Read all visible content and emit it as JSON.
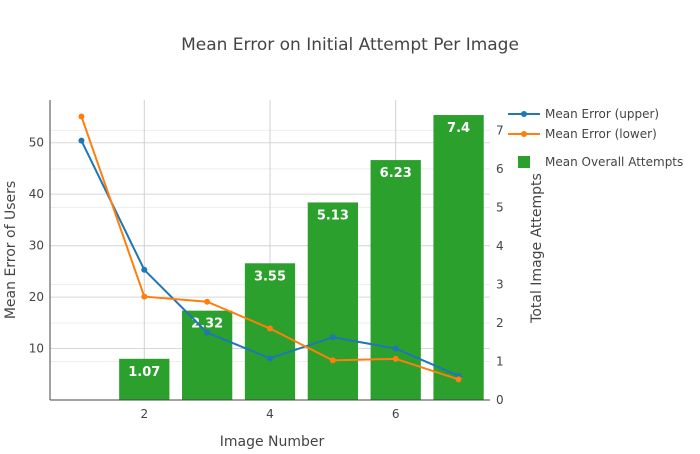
{
  "chart_data": {
    "type": "bar+line",
    "title": "Mean Error on Initial Attempt Per Image",
    "xlabel": "Image Number",
    "ylabel": "Mean Error of Users",
    "y2label": "Total Image Attempts",
    "xlim": [
      0.5,
      7.5
    ],
    "ylim": [
      0,
      58.3
    ],
    "y2lim": [
      0,
      7.79
    ],
    "x_ticks": [
      2,
      4,
      6
    ],
    "y_ticks": [
      10,
      20,
      30,
      40,
      50
    ],
    "y2_ticks": [
      0,
      1,
      2,
      3,
      4,
      5,
      6,
      7
    ],
    "grid": true,
    "legend_position": "right",
    "x": [
      1,
      2,
      3,
      4,
      5,
      6,
      7
    ],
    "series": [
      {
        "name": "Mean Error (upper)",
        "type": "line",
        "axis": "y",
        "color": "#1f77b4",
        "values": [
          50.4,
          25.3,
          13.1,
          8.1,
          12.2,
          10.0,
          4.7
        ]
      },
      {
        "name": "Mean Error (lower)",
        "type": "line",
        "axis": "y",
        "color": "#ff7f0e",
        "values": [
          55.1,
          20.1,
          19.1,
          13.9,
          7.7,
          8.0,
          4.0
        ]
      },
      {
        "name": "Mean Overall Attempts",
        "type": "bar",
        "axis": "y2",
        "color": "#2ca02c",
        "x": [
          2,
          3,
          4,
          5,
          6,
          7
        ],
        "values": [
          1.07,
          2.32,
          3.55,
          5.13,
          6.23,
          7.4
        ],
        "labels": [
          "1.07",
          "2.32",
          "3.55",
          "5.13",
          "6.23",
          "7.4"
        ]
      }
    ]
  }
}
